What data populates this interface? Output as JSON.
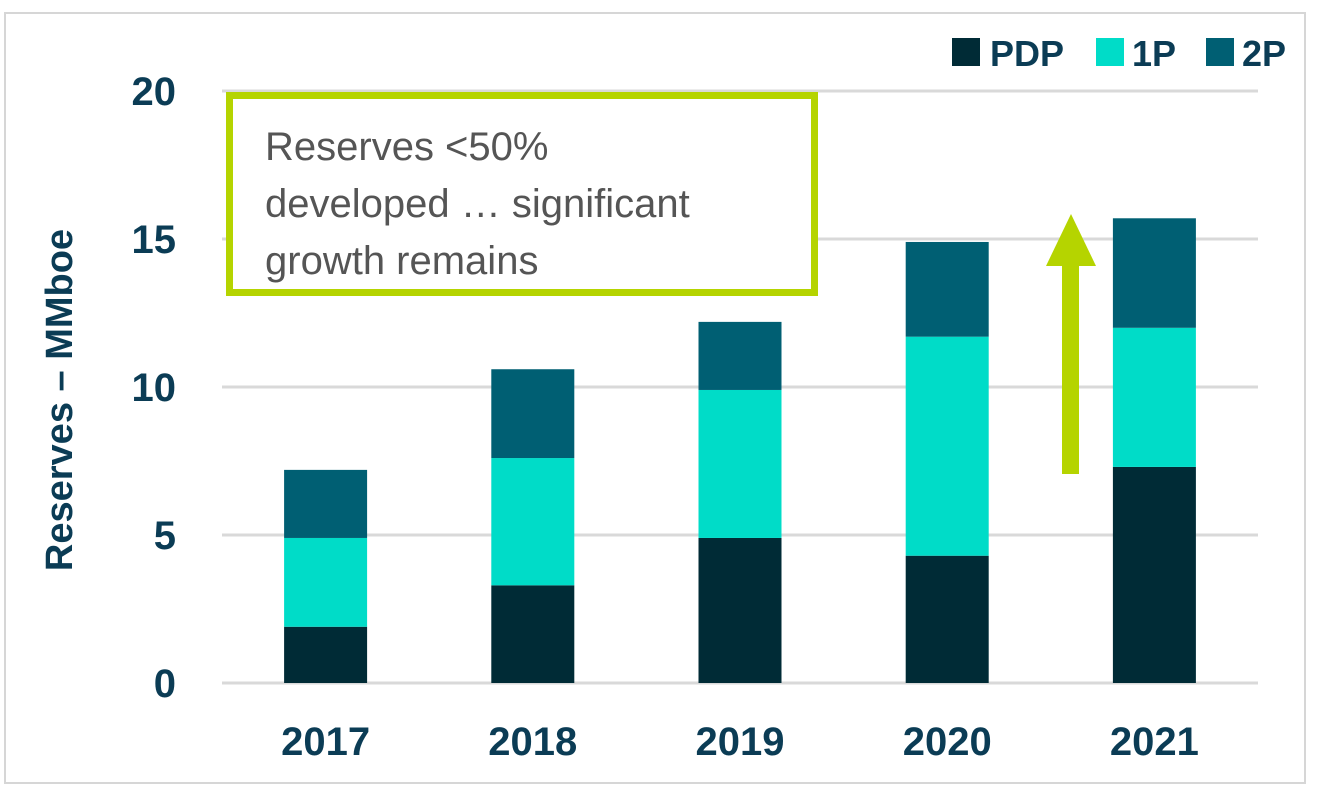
{
  "chart_data": {
    "type": "bar",
    "stacked": true,
    "categories": [
      "2017",
      "2018",
      "2019",
      "2020",
      "2021"
    ],
    "series": [
      {
        "name": "PDP",
        "values": [
          1.9,
          3.3,
          4.9,
          4.3,
          7.3
        ],
        "color": "#002b36"
      },
      {
        "name": "1P",
        "values": [
          3.0,
          4.3,
          5.0,
          7.4,
          4.7
        ],
        "color": "#00dcc8"
      },
      {
        "name": "2P",
        "values": [
          2.3,
          3.0,
          2.3,
          3.2,
          3.7
        ],
        "color": "#005f73"
      }
    ],
    "ylabel": "Reserves – MMboe",
    "ylim": [
      0,
      20
    ],
    "yticks": [
      "0",
      "5",
      "10",
      "15",
      "20"
    ],
    "grid": true,
    "legend_position": "top-right",
    "annotation": {
      "lines": [
        "Reserves <50%",
        "developed … significant",
        "growth remains"
      ],
      "border_color": "#b5d400"
    },
    "arrow": {
      "direction": "up",
      "color": "#b5d400"
    }
  }
}
